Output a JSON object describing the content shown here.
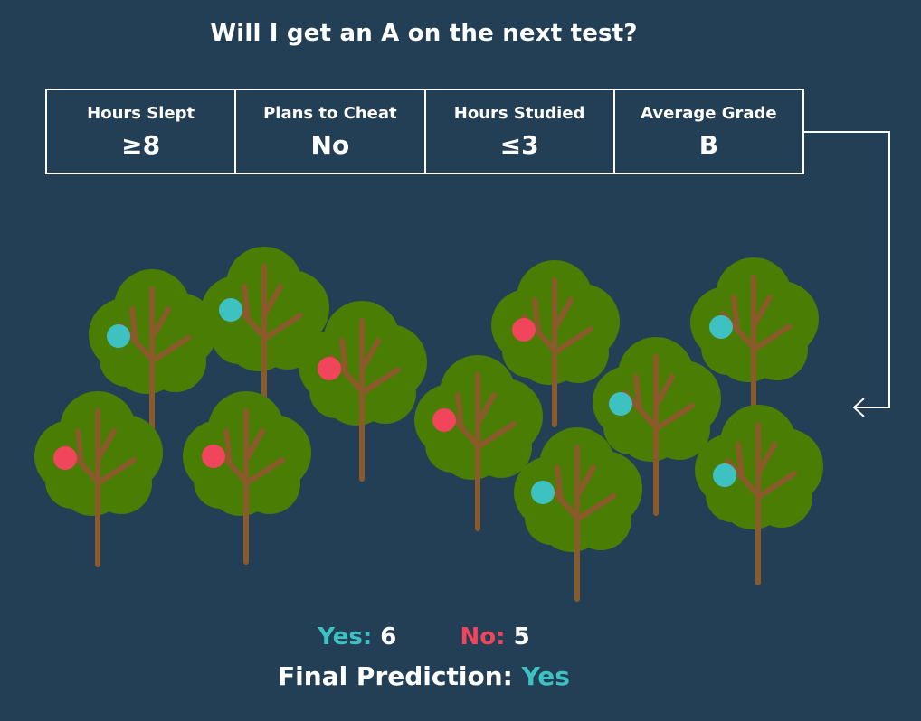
{
  "title": "Will I get an A on the next test?",
  "features": [
    {
      "label": "Hours Slept",
      "value": "≥8"
    },
    {
      "label": "Plans to Cheat",
      "value": "No"
    },
    {
      "label": "Hours Studied",
      "value": "≤3"
    },
    {
      "label": "Average Grade",
      "value": "B"
    }
  ],
  "colors": {
    "background": "#223f55",
    "yes": "#3ec1c1",
    "no": "#f0455b",
    "foliage": "#4a7d04",
    "trunk": "#8b5a2b"
  },
  "trees_votes": [
    "yes",
    "yes",
    "no",
    "no",
    "yes",
    "no",
    "yes",
    "no",
    "no",
    "yes",
    "yes"
  ],
  "tally": {
    "yes_label": "Yes:",
    "yes_count": "6",
    "no_label": "No:",
    "no_count": "5"
  },
  "prediction": {
    "label": "Final Prediction:",
    "value": "Yes"
  }
}
